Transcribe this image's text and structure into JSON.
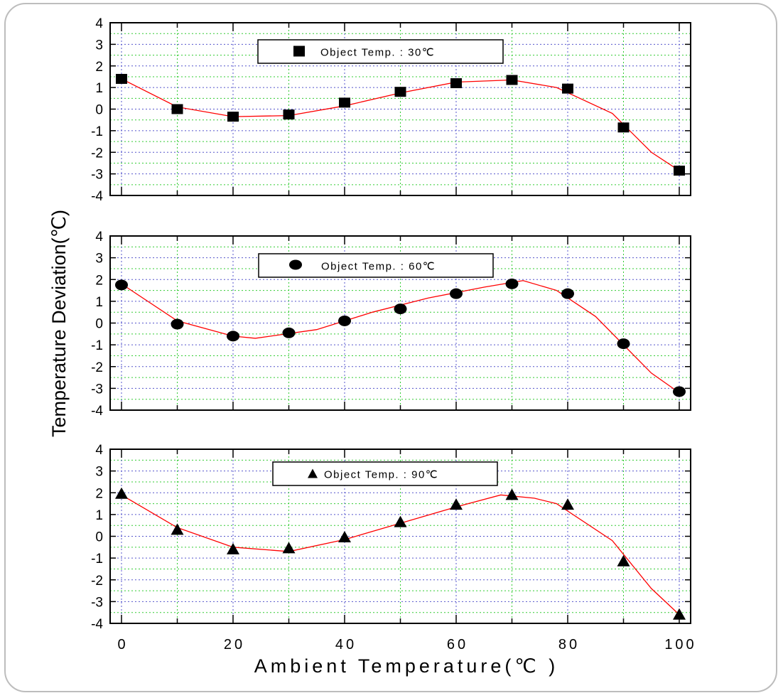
{
  "chart_data": [
    {
      "type": "scatter",
      "panel": "top",
      "x": [
        0,
        10,
        20,
        30,
        40,
        50,
        60,
        70,
        80,
        90,
        100
      ],
      "series": [
        {
          "name": "Object Temp.  :  30℃",
          "marker": "square",
          "values": [
            1.4,
            0.0,
            -0.35,
            -0.25,
            0.3,
            0.8,
            1.2,
            1.35,
            0.95,
            -0.85,
            -2.85
          ]
        }
      ],
      "fit_line": {
        "x": [
          0,
          10,
          20,
          30,
          40,
          50,
          60,
          70,
          78,
          88,
          95,
          100
        ],
        "y": [
          1.4,
          0.1,
          -0.35,
          -0.3,
          0.15,
          0.75,
          1.25,
          1.35,
          1.0,
          -0.2,
          -2.0,
          -2.85
        ],
        "color": "#ff0000"
      },
      "ylim": [
        -4,
        4
      ],
      "xlim": [
        0,
        100
      ],
      "yticks": [
        "4",
        "3",
        "2",
        "1",
        "0",
        "-1",
        "-2",
        "-3",
        "-4"
      ],
      "grid": true
    },
    {
      "type": "scatter",
      "panel": "middle",
      "x": [
        0,
        10,
        20,
        30,
        40,
        50,
        60,
        70,
        80,
        90,
        100
      ],
      "series": [
        {
          "name": "Object Temp.  :  60℃",
          "marker": "circle",
          "values": [
            1.75,
            -0.05,
            -0.6,
            -0.45,
            0.1,
            0.65,
            1.35,
            1.8,
            1.35,
            -0.95,
            -3.15
          ]
        }
      ],
      "fit_line": {
        "x": [
          0,
          10,
          20,
          24,
          35,
          45,
          55,
          65,
          72,
          78,
          85,
          95,
          100
        ],
        "y": [
          1.8,
          0.1,
          -0.6,
          -0.7,
          -0.3,
          0.5,
          1.15,
          1.65,
          1.95,
          1.5,
          0.3,
          -2.3,
          -3.2
        ],
        "color": "#ff0000"
      },
      "ylim": [
        -4,
        4
      ],
      "xlim": [
        0,
        100
      ],
      "yticks": [
        "4",
        "3",
        "2",
        "1",
        "0",
        "-1",
        "-2",
        "-3",
        "-4"
      ],
      "grid": true
    },
    {
      "type": "scatter",
      "panel": "bottom",
      "x": [
        0,
        10,
        20,
        30,
        40,
        50,
        60,
        70,
        80,
        90,
        100
      ],
      "series": [
        {
          "name": "Object Temp.  :  90℃",
          "marker": "triangle",
          "values": [
            1.95,
            0.3,
            -0.6,
            -0.55,
            -0.05,
            0.65,
            1.45,
            1.9,
            1.45,
            -1.15,
            -3.6
          ]
        }
      ],
      "fit_line": {
        "x": [
          0,
          10,
          20,
          30,
          40,
          50,
          60,
          68,
          74,
          78,
          88,
          95,
          100
        ],
        "y": [
          1.9,
          0.4,
          -0.5,
          -0.7,
          -0.15,
          0.6,
          1.35,
          1.9,
          1.75,
          1.5,
          -0.2,
          -2.4,
          -3.6
        ],
        "color": "#ff0000"
      },
      "ylim": [
        -4,
        4
      ],
      "xlim": [
        0,
        100
      ],
      "yticks": [
        "4",
        "3",
        "2",
        "1",
        "0",
        "-1",
        "-2",
        "-3",
        "-4"
      ],
      "xticks": [
        "0",
        "20",
        "40",
        "60",
        "80",
        "100"
      ],
      "grid": true
    }
  ],
  "labels": {
    "y_axis": "Temperature Deviation(℃)",
    "x_axis": "Ambient Temperature(℃ )"
  },
  "colors": {
    "fit_line": "#ff0000",
    "grid_major": "#5555cc",
    "grid_minor": "#33cc33",
    "marker": "#000000"
  }
}
